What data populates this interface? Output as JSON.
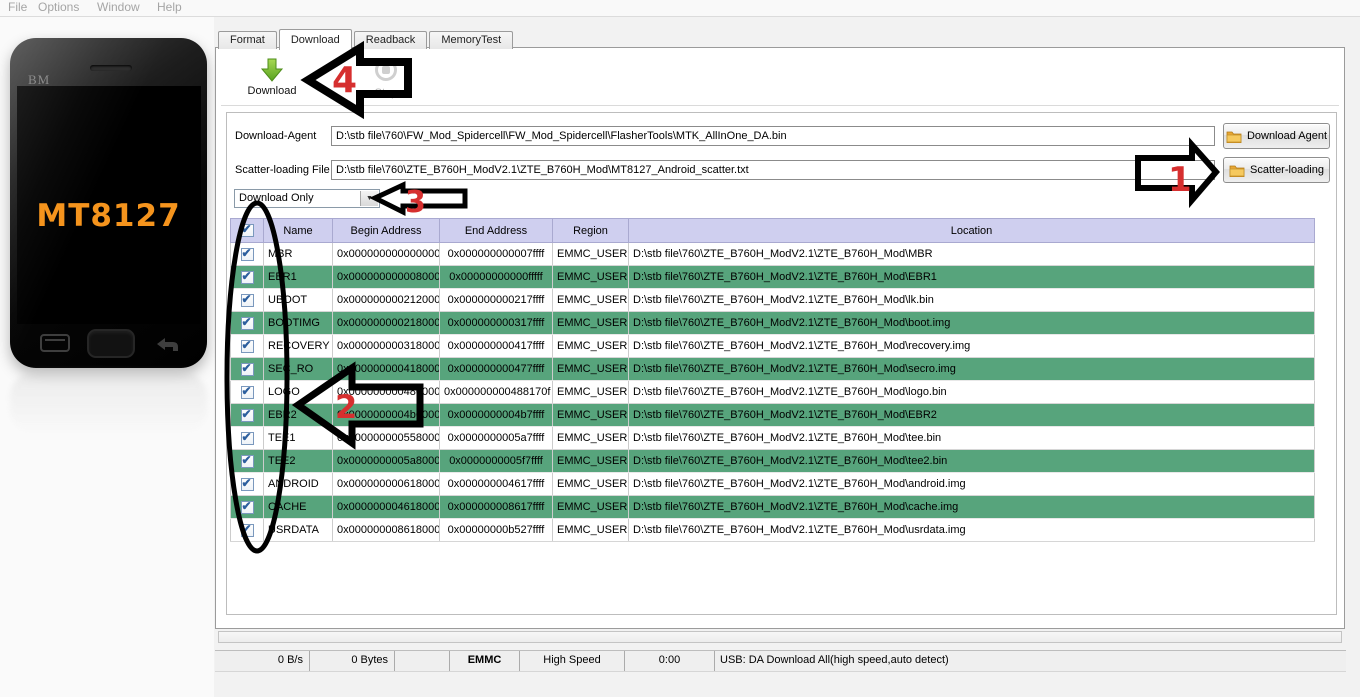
{
  "menu": {
    "items": [
      "File",
      "Options",
      "Window",
      "Help"
    ]
  },
  "phone": {
    "brand": "BM",
    "chipset": "MT8127",
    "chip_color": "#f5941d"
  },
  "tabs": [
    {
      "label": "Format",
      "active": false
    },
    {
      "label": "Download",
      "active": true
    },
    {
      "label": "Readback",
      "active": false
    },
    {
      "label": "MemoryTest",
      "active": false
    }
  ],
  "toolbar": {
    "download_label": "Download",
    "stop_label": "Stop"
  },
  "fields": {
    "download_agent": {
      "label": "Download-Agent",
      "value": "D:\\stb file\\760\\FW_Mod_Spidercell\\FW_Mod_Spidercell\\FlasherTools\\MTK_AllInOne_DA.bin",
      "button": "Download Agent"
    },
    "scatter": {
      "label": "Scatter-loading File",
      "value": "D:\\stb file\\760\\ZTE_B760H_ModV2.1\\ZTE_B760H_Mod\\MT8127_Android_scatter.txt",
      "button": "Scatter-loading"
    }
  },
  "mode_select": {
    "value": "Download Only"
  },
  "table": {
    "headers": [
      "Name",
      "Begin Address",
      "End Address",
      "Region",
      "Location"
    ],
    "rows": [
      {
        "checked": true,
        "name": "MBR",
        "begin": "0x0000000000000000",
        "end": "0x000000000007ffff",
        "region": "EMMC_USER",
        "location": "D:\\stb file\\760\\ZTE_B760H_ModV2.1\\ZTE_B760H_Mod\\MBR"
      },
      {
        "checked": true,
        "name": "EBR1",
        "begin": "0x0000000000080000",
        "end": "0x00000000000fffff",
        "region": "EMMC_USER",
        "location": "D:\\stb file\\760\\ZTE_B760H_ModV2.1\\ZTE_B760H_Mod\\EBR1"
      },
      {
        "checked": true,
        "name": "UBOOT",
        "begin": "0x0000000002120000",
        "end": "0x000000000217ffff",
        "region": "EMMC_USER",
        "location": "D:\\stb file\\760\\ZTE_B760H_ModV2.1\\ZTE_B760H_Mod\\lk.bin"
      },
      {
        "checked": true,
        "name": "BOOTIMG",
        "begin": "0x0000000002180000",
        "end": "0x000000000317ffff",
        "region": "EMMC_USER",
        "location": "D:\\stb file\\760\\ZTE_B760H_ModV2.1\\ZTE_B760H_Mod\\boot.img"
      },
      {
        "checked": true,
        "name": "RECOVERY",
        "begin": "0x0000000003180000",
        "end": "0x000000000417ffff",
        "region": "EMMC_USER",
        "location": "D:\\stb file\\760\\ZTE_B760H_ModV2.1\\ZTE_B760H_Mod\\recovery.img"
      },
      {
        "checked": true,
        "name": "SEC_RO",
        "begin": "0x0000000004180000",
        "end": "0x000000000477ffff",
        "region": "EMMC_USER",
        "location": "D:\\stb file\\760\\ZTE_B760H_ModV2.1\\ZTE_B760H_Mod\\secro.img"
      },
      {
        "checked": true,
        "name": "LOGO",
        "begin": "0x0000000004800000",
        "end": "0x000000000488170f",
        "region": "EMMC_USER",
        "location": "D:\\stb file\\760\\ZTE_B760H_ModV2.1\\ZTE_B760H_Mod\\logo.bin"
      },
      {
        "checked": true,
        "name": "EBR2",
        "begin": "0x0000000004b00000",
        "end": "0x0000000004b7ffff",
        "region": "EMMC_USER",
        "location": "D:\\stb file\\760\\ZTE_B760H_ModV2.1\\ZTE_B760H_Mod\\EBR2"
      },
      {
        "checked": true,
        "name": "TEE1",
        "begin": "0x0000000005580000",
        "end": "0x0000000005a7ffff",
        "region": "EMMC_USER",
        "location": "D:\\stb file\\760\\ZTE_B760H_ModV2.1\\ZTE_B760H_Mod\\tee.bin"
      },
      {
        "checked": true,
        "name": "TEE2",
        "begin": "0x0000000005a80000",
        "end": "0x0000000005f7ffff",
        "region": "EMMC_USER",
        "location": "D:\\stb file\\760\\ZTE_B760H_ModV2.1\\ZTE_B760H_Mod\\tee2.bin"
      },
      {
        "checked": true,
        "name": "ANDROID",
        "begin": "0x0000000006180000",
        "end": "0x000000004617ffff",
        "region": "EMMC_USER",
        "location": "D:\\stb file\\760\\ZTE_B760H_ModV2.1\\ZTE_B760H_Mod\\android.img"
      },
      {
        "checked": true,
        "name": "CACHE",
        "begin": "0x0000000046180000",
        "end": "0x000000008617ffff",
        "region": "EMMC_USER",
        "location": "D:\\stb file\\760\\ZTE_B760H_ModV2.1\\ZTE_B760H_Mod\\cache.img"
      },
      {
        "checked": true,
        "name": "USRDATA",
        "begin": "0x0000000086180000",
        "end": "0x00000000b527ffff",
        "region": "EMMC_USER",
        "location": "D:\\stb file\\760\\ZTE_B760H_ModV2.1\\ZTE_B760H_Mod\\usrdata.img"
      }
    ]
  },
  "statusbar": {
    "speed": "0 B/s",
    "bytes": "0 Bytes",
    "storage": "EMMC",
    "usb_mode": "High Speed",
    "elapsed": "0:00",
    "message": "USB: DA Download All(high speed,auto detect)"
  },
  "annotations": {
    "a1": "1",
    "a2": "2",
    "a3": "3",
    "a4": "4",
    "color": "#d62f2f"
  },
  "colors": {
    "row_green": "#57a47c",
    "header_lavender": "#cfcfef",
    "folder_yellow": "#efb63e",
    "download_green": "#6db52d"
  }
}
